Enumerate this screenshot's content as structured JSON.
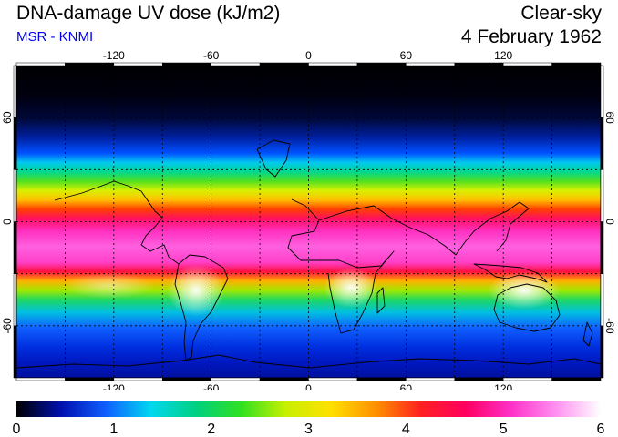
{
  "header": {
    "title": "DNA-damage UV dose (kJ/m2)",
    "subtitle": "MSR - KNMI",
    "condition": "Clear-sky",
    "date": "4 February 1962"
  },
  "colors": {
    "subtitle": "#0000ee",
    "frame": "#000000"
  },
  "map": {
    "lon_range": [
      -180,
      180
    ],
    "lat_range": [
      -90,
      90
    ],
    "lon_ticks": [
      "-120",
      "-60",
      "0",
      "60",
      "120"
    ],
    "lat_ticks": [
      "60",
      "0",
      "-60"
    ],
    "lon_tick_values": [
      -120,
      -60,
      0,
      60,
      120
    ],
    "lat_tick_values": [
      60,
      0,
      -60
    ],
    "gridlines": "dashed every 30 degrees",
    "coastlines": true
  },
  "colorbar": {
    "min": 0,
    "max": 6,
    "labels": [
      "0",
      "1",
      "2",
      "3",
      "4",
      "5",
      "6"
    ],
    "colors": [
      "#000000",
      "#0010b0",
      "#1060ff",
      "#00d8f0",
      "#00d080",
      "#30e020",
      "#c8f000",
      "#ffe000",
      "#ff9000",
      "#ff2020",
      "#ff0060",
      "#ff30c8",
      "#ff90f0",
      "#ffffff"
    ]
  }
}
